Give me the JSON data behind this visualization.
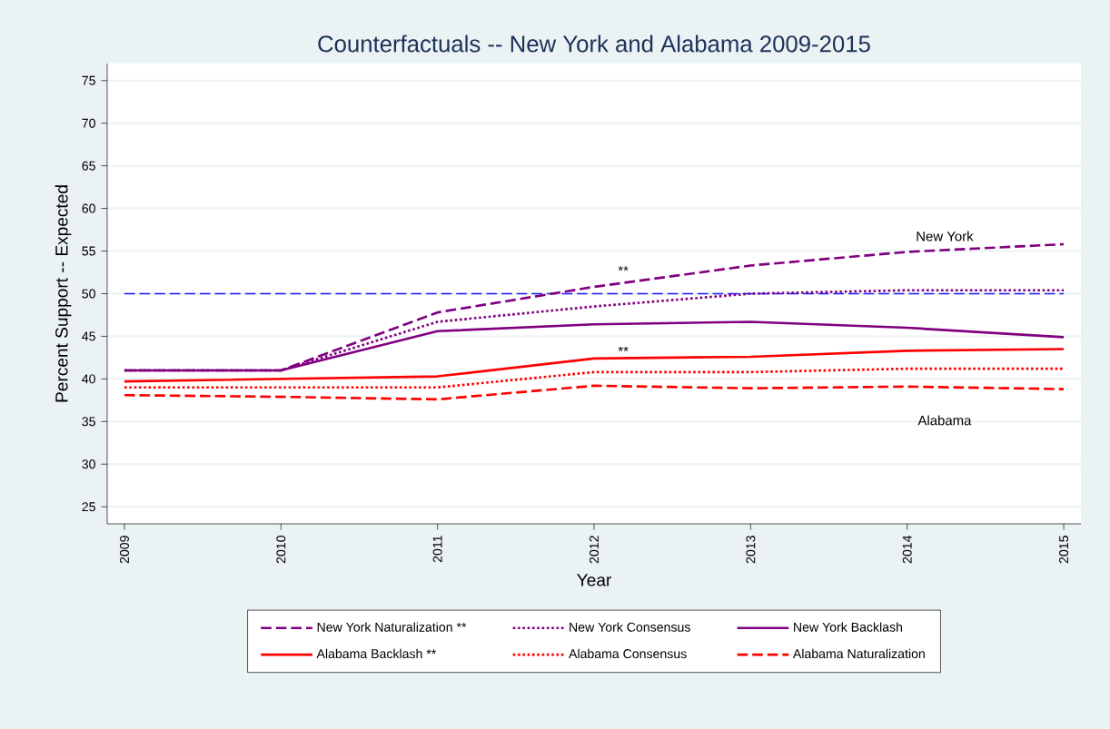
{
  "chart_data": {
    "type": "line",
    "title": "Counterfactuals -- New York and Alabama 2009-2015",
    "xlabel": "Year",
    "ylabel": "Percent Support -- Expected",
    "x": [
      2009,
      2010,
      2011,
      2012,
      2013,
      2014,
      2015
    ],
    "series": [
      {
        "name": "New York Naturalization **",
        "color": "#800080",
        "line_style": "dashed",
        "values": [
          41.0,
          41.0,
          47.8,
          50.8,
          53.3,
          54.9,
          55.8
        ]
      },
      {
        "name": "New York Consensus",
        "color": "#800080",
        "line_style": "dotted",
        "values": [
          41.0,
          41.0,
          46.7,
          48.5,
          50.0,
          50.4,
          50.4
        ]
      },
      {
        "name": "New York Backlash",
        "color": "#800080",
        "line_style": "solid",
        "values": [
          41.0,
          41.0,
          45.6,
          46.4,
          46.7,
          46.0,
          44.9
        ]
      },
      {
        "name": "Alabama Backlash **",
        "color": "#ff0000",
        "line_style": "solid",
        "values": [
          39.7,
          40.0,
          40.3,
          42.4,
          42.6,
          43.3,
          43.5
        ]
      },
      {
        "name": "Alabama Consensus",
        "color": "#ff0000",
        "line_style": "dotted",
        "values": [
          39.0,
          39.0,
          39.0,
          40.8,
          40.8,
          41.2,
          41.2
        ]
      },
      {
        "name": "Alabama Naturalization",
        "color": "#ff0000",
        "line_style": "dashed",
        "values": [
          38.1,
          37.9,
          37.6,
          39.2,
          38.9,
          39.1,
          38.8
        ]
      }
    ],
    "xlim": [
      2008.89,
      2015.11
    ],
    "xticks": [
      2009,
      2010,
      2011,
      2012,
      2013,
      2014,
      2015
    ],
    "ylim": [
      23,
      77
    ],
    "yticks": [
      25,
      30,
      35,
      40,
      45,
      50,
      55,
      60,
      65,
      70,
      75
    ],
    "ref_lines": [
      {
        "axis": "y",
        "value": 50,
        "color": "#1a1aff",
        "line_style": "dashed"
      }
    ],
    "annotations": [
      "**",
      "**",
      "New York",
      "Alabama"
    ],
    "grid": "y",
    "legend": "bottom",
    "marker": "none"
  }
}
